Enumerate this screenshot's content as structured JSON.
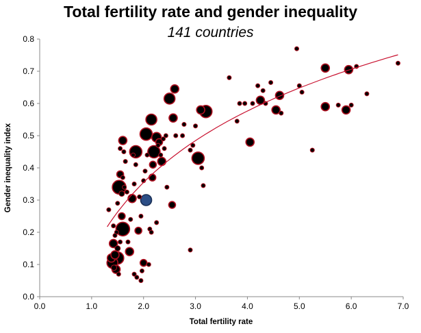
{
  "chart_data": {
    "type": "scatter",
    "title": "Total fertility rate and gender inequality",
    "subtitle": "141 countries",
    "xlabel": "Total fertility rate",
    "ylabel": "Gender inequality index",
    "xlim": [
      0,
      7
    ],
    "ylim": [
      0,
      0.8
    ],
    "x_ticks": [
      "0.0",
      "1.0",
      "2.0",
      "3.0",
      "4.0",
      "5.0",
      "6.0",
      "7.0"
    ],
    "y_ticks": [
      "0.0",
      "0.1",
      "0.2",
      "0.3",
      "0.4",
      "0.5",
      "0.6",
      "0.7",
      "0.8"
    ],
    "bubble_size_note": "bubble area encodes a relative size weight (s)",
    "colors": {
      "point_fill": "#000000",
      "point_stroke": "#b01020",
      "highlight_fill": "#2c4e86",
      "trend": "#c8102e"
    },
    "trend": {
      "type": "logarithmic",
      "x_start": 1.3,
      "x_end": 6.9,
      "a": 0.133,
      "b": 0.32
    },
    "series": [
      {
        "name": "countries",
        "points": [
          {
            "x": 1.33,
            "y": 0.27,
            "s": 3
          },
          {
            "x": 1.38,
            "y": 0.12,
            "s": 6
          },
          {
            "x": 1.4,
            "y": 0.105,
            "s": 8
          },
          {
            "x": 1.42,
            "y": 0.165,
            "s": 6
          },
          {
            "x": 1.45,
            "y": 0.13,
            "s": 6
          },
          {
            "x": 1.43,
            "y": 0.09,
            "s": 4
          },
          {
            "x": 1.47,
            "y": 0.085,
            "s": 6
          },
          {
            "x": 1.5,
            "y": 0.12,
            "s": 9
          },
          {
            "x": 1.52,
            "y": 0.07,
            "s": 3
          },
          {
            "x": 1.5,
            "y": 0.15,
            "s": 4
          },
          {
            "x": 1.55,
            "y": 0.17,
            "s": 3
          },
          {
            "x": 1.48,
            "y": 0.2,
            "s": 3
          },
          {
            "x": 1.6,
            "y": 0.21,
            "s": 10
          },
          {
            "x": 1.58,
            "y": 0.25,
            "s": 5
          },
          {
            "x": 1.53,
            "y": 0.34,
            "s": 10
          },
          {
            "x": 1.58,
            "y": 0.32,
            "s": 4
          },
          {
            "x": 1.55,
            "y": 0.38,
            "s": 5
          },
          {
            "x": 1.6,
            "y": 0.37,
            "s": 3
          },
          {
            "x": 1.63,
            "y": 0.34,
            "s": 3
          },
          {
            "x": 1.6,
            "y": 0.485,
            "s": 6
          },
          {
            "x": 1.62,
            "y": 0.45,
            "s": 3
          },
          {
            "x": 1.65,
            "y": 0.42,
            "s": 3
          },
          {
            "x": 1.45,
            "y": 0.19,
            "s": 3
          },
          {
            "x": 1.55,
            "y": 0.46,
            "s": 3
          },
          {
            "x": 1.7,
            "y": 0.17,
            "s": 3
          },
          {
            "x": 1.73,
            "y": 0.14,
            "s": 6
          },
          {
            "x": 1.78,
            "y": 0.305,
            "s": 6
          },
          {
            "x": 1.8,
            "y": 0.44,
            "s": 3
          },
          {
            "x": 1.82,
            "y": 0.07,
            "s": 3
          },
          {
            "x": 1.82,
            "y": 0.35,
            "s": 3
          },
          {
            "x": 1.85,
            "y": 0.45,
            "s": 9
          },
          {
            "x": 1.85,
            "y": 0.41,
            "s": 3
          },
          {
            "x": 1.87,
            "y": 0.06,
            "s": 3
          },
          {
            "x": 1.9,
            "y": 0.205,
            "s": 5
          },
          {
            "x": 1.92,
            "y": 0.31,
            "s": 3
          },
          {
            "x": 1.95,
            "y": 0.05,
            "s": 3
          },
          {
            "x": 1.97,
            "y": 0.08,
            "s": 3
          },
          {
            "x": 2.0,
            "y": 0.105,
            "s": 5
          },
          {
            "x": 2.0,
            "y": 0.36,
            "s": 3
          },
          {
            "x": 2.03,
            "y": 0.39,
            "s": 3
          },
          {
            "x": 2.05,
            "y": 0.3,
            "s": 8,
            "hi": true
          },
          {
            "x": 2.05,
            "y": 0.505,
            "s": 9
          },
          {
            "x": 2.07,
            "y": 0.44,
            "s": 3
          },
          {
            "x": 2.1,
            "y": 0.1,
            "s": 3
          },
          {
            "x": 2.12,
            "y": 0.21,
            "s": 3
          },
          {
            "x": 2.15,
            "y": 0.55,
            "s": 8
          },
          {
            "x": 2.15,
            "y": 0.2,
            "s": 3
          },
          {
            "x": 2.17,
            "y": 0.37,
            "s": 5
          },
          {
            "x": 2.18,
            "y": 0.41,
            "s": 5
          },
          {
            "x": 2.2,
            "y": 0.45,
            "s": 9
          },
          {
            "x": 2.25,
            "y": 0.495,
            "s": 7
          },
          {
            "x": 2.25,
            "y": 0.23,
            "s": 3
          },
          {
            "x": 2.28,
            "y": 0.47,
            "s": 3
          },
          {
            "x": 2.3,
            "y": 0.48,
            "s": 5
          },
          {
            "x": 2.33,
            "y": 0.44,
            "s": 3
          },
          {
            "x": 2.35,
            "y": 0.42,
            "s": 6
          },
          {
            "x": 2.38,
            "y": 0.49,
            "s": 3
          },
          {
            "x": 2.4,
            "y": 0.46,
            "s": 3
          },
          {
            "x": 2.43,
            "y": 0.5,
            "s": 3
          },
          {
            "x": 2.45,
            "y": 0.34,
            "s": 3
          },
          {
            "x": 2.5,
            "y": 0.615,
            "s": 8
          },
          {
            "x": 2.55,
            "y": 0.285,
            "s": 5
          },
          {
            "x": 2.57,
            "y": 0.555,
            "s": 6
          },
          {
            "x": 2.6,
            "y": 0.645,
            "s": 6
          },
          {
            "x": 2.62,
            "y": 0.5,
            "s": 3
          },
          {
            "x": 2.75,
            "y": 0.5,
            "s": 3
          },
          {
            "x": 2.78,
            "y": 0.535,
            "s": 3
          },
          {
            "x": 2.9,
            "y": 0.145,
            "s": 3
          },
          {
            "x": 2.9,
            "y": 0.455,
            "s": 3
          },
          {
            "x": 2.95,
            "y": 0.47,
            "s": 3
          },
          {
            "x": 3.0,
            "y": 0.53,
            "s": 3
          },
          {
            "x": 3.05,
            "y": 0.43,
            "s": 9
          },
          {
            "x": 3.1,
            "y": 0.58,
            "s": 6
          },
          {
            "x": 3.12,
            "y": 0.4,
            "s": 3
          },
          {
            "x": 3.15,
            "y": 0.345,
            "s": 3
          },
          {
            "x": 3.2,
            "y": 0.575,
            "s": 9
          },
          {
            "x": 3.65,
            "y": 0.68,
            "s": 3
          },
          {
            "x": 3.8,
            "y": 0.545,
            "s": 3
          },
          {
            "x": 3.85,
            "y": 0.6,
            "s": 3
          },
          {
            "x": 3.95,
            "y": 0.6,
            "s": 3
          },
          {
            "x": 4.05,
            "y": 0.48,
            "s": 6
          },
          {
            "x": 4.1,
            "y": 0.6,
            "s": 3
          },
          {
            "x": 4.2,
            "y": 0.655,
            "s": 3
          },
          {
            "x": 4.25,
            "y": 0.61,
            "s": 6
          },
          {
            "x": 4.3,
            "y": 0.64,
            "s": 3
          },
          {
            "x": 4.35,
            "y": 0.6,
            "s": 3
          },
          {
            "x": 4.45,
            "y": 0.665,
            "s": 3
          },
          {
            "x": 4.55,
            "y": 0.58,
            "s": 6
          },
          {
            "x": 4.62,
            "y": 0.625,
            "s": 6
          },
          {
            "x": 4.65,
            "y": 0.57,
            "s": 3
          },
          {
            "x": 4.95,
            "y": 0.77,
            "s": 3
          },
          {
            "x": 5.0,
            "y": 0.655,
            "s": 3
          },
          {
            "x": 5.05,
            "y": 0.635,
            "s": 3
          },
          {
            "x": 5.25,
            "y": 0.455,
            "s": 3
          },
          {
            "x": 5.5,
            "y": 0.71,
            "s": 6
          },
          {
            "x": 5.5,
            "y": 0.59,
            "s": 6
          },
          {
            "x": 5.75,
            "y": 0.595,
            "s": 3
          },
          {
            "x": 5.9,
            "y": 0.58,
            "s": 6
          },
          {
            "x": 5.95,
            "y": 0.705,
            "s": 6
          },
          {
            "x": 6.0,
            "y": 0.595,
            "s": 3
          },
          {
            "x": 6.1,
            "y": 0.715,
            "s": 3
          },
          {
            "x": 6.3,
            "y": 0.63,
            "s": 3
          },
          {
            "x": 6.9,
            "y": 0.725,
            "s": 3
          },
          {
            "x": 1.68,
            "y": 0.325,
            "s": 3
          },
          {
            "x": 1.75,
            "y": 0.24,
            "s": 3
          },
          {
            "x": 1.5,
            "y": 0.29,
            "s": 3
          },
          {
            "x": 1.42,
            "y": 0.22,
            "s": 3
          },
          {
            "x": 1.95,
            "y": 0.25,
            "s": 3
          }
        ]
      }
    ]
  }
}
